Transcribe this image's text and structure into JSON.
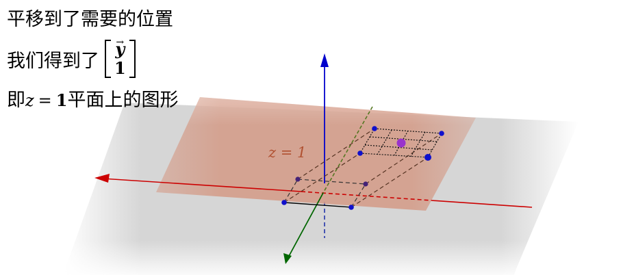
{
  "captions": {
    "line1": "平移到了需要的位置",
    "line2_prefix": "我们得到了",
    "matrix_top": "y",
    "matrix_top_arrow": "→",
    "matrix_bottom": "1",
    "line3_prefix": "即",
    "line3_var": "z",
    "line3_eq": "=",
    "line3_val": "1",
    "line3_suffix": "平面上的图形"
  },
  "plane_label": "z = 1",
  "colors": {
    "x_axis": "#cc0000",
    "y_axis": "#006600",
    "z_axis": "#0000cc",
    "plane_z1": "#d4a08c",
    "plane_z0": "#cfcfcf",
    "point": "#1010cc",
    "point_highlight": "#9933cc",
    "label": "#b05030"
  }
}
